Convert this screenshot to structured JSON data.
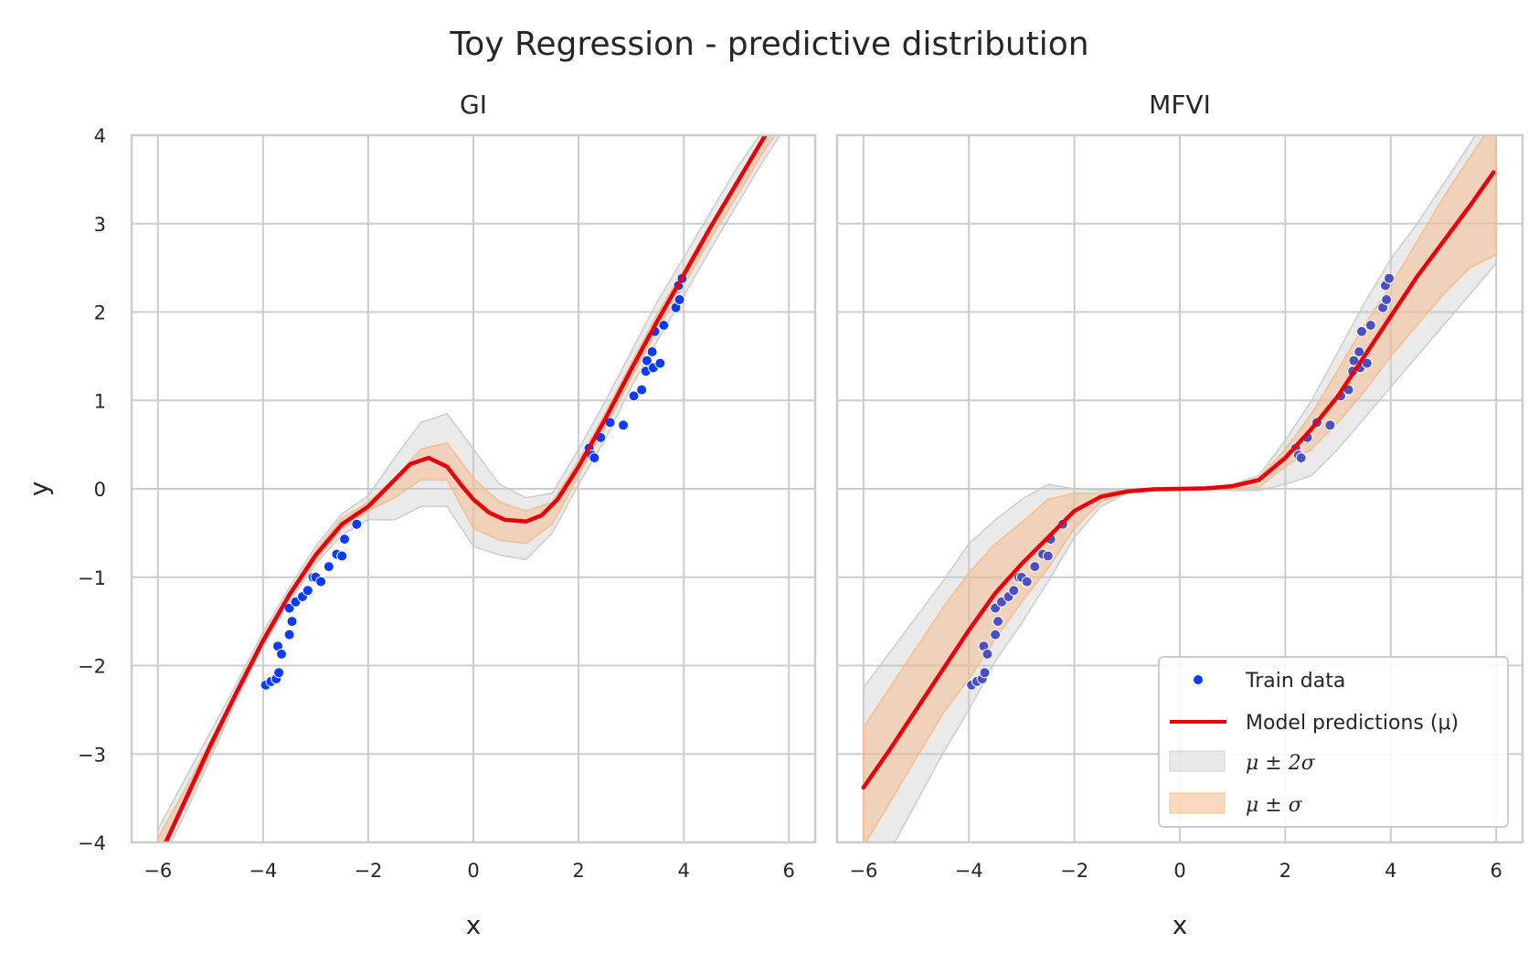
{
  "figure": {
    "title": "Toy Regression - predictive distribution"
  },
  "legend": {
    "train": "Train data",
    "model": "Model predictions (μ)",
    "two_sigma": "μ ± 2σ",
    "one_sigma": "μ ± σ",
    "placement": "lower-right of MFVI panel"
  },
  "colors": {
    "train_points": "#0a3cff",
    "train_points_mfvi": "#4a4fc4",
    "prediction_line": "#e8000b",
    "band_2sigma": "#c8c8c8",
    "band_1sigma": "#f5b98a",
    "grid": "#cccccc",
    "axes_edge": "#cccccc"
  },
  "chart_data": [
    {
      "type": "line",
      "title": "GI",
      "xlabel": "x",
      "ylabel": "y",
      "xlim": [
        -6.5,
        6.5
      ],
      "ylim": [
        -4,
        4
      ],
      "xticks": [
        "−6",
        "−4",
        "−2",
        "0",
        "2",
        "4",
        "6"
      ],
      "yticks": [
        "4",
        "3",
        "2",
        "1",
        "0",
        "−1",
        "−2",
        "−3",
        "−4"
      ],
      "grid": true,
      "series": [
        {
          "kind": "band_2sigma",
          "x": [
            -6,
            -5.5,
            -5,
            -4.5,
            -4,
            -3.5,
            -3,
            -2.5,
            -2,
            -1.5,
            -1,
            -0.5,
            0,
            0.5,
            1,
            1.5,
            2,
            2.5,
            3,
            3.5,
            4,
            4.5,
            5,
            5.5,
            6
          ],
          "upper": [
            -3.85,
            -3.3,
            -2.75,
            -2.2,
            -1.62,
            -1.12,
            -0.65,
            -0.28,
            -0.08,
            0.35,
            0.75,
            0.85,
            0.45,
            0.05,
            -0.1,
            -0.05,
            0.45,
            0.98,
            1.55,
            2.12,
            2.62,
            3.12,
            3.62,
            4.05,
            4.45
          ],
          "lower": [
            -4.3,
            -3.7,
            -3.05,
            -2.38,
            -1.78,
            -1.28,
            -0.85,
            -0.52,
            -0.35,
            -0.35,
            -0.2,
            -0.2,
            -0.65,
            -0.75,
            -0.8,
            -0.5,
            0.05,
            0.55,
            1.15,
            1.68,
            2.18,
            2.7,
            3.2,
            3.7,
            4.15
          ]
        },
        {
          "kind": "band_1sigma",
          "x": [
            -6,
            -5.5,
            -5,
            -4.5,
            -4,
            -3.5,
            -3,
            -2.5,
            -2,
            -1.5,
            -1,
            -0.5,
            0,
            0.5,
            1,
            1.5,
            2,
            2.5,
            3,
            3.5,
            4,
            4.5,
            5,
            5.5,
            6
          ],
          "upper": [
            -3.95,
            -3.42,
            -2.85,
            -2.25,
            -1.67,
            -1.17,
            -0.7,
            -0.33,
            -0.15,
            0.12,
            0.45,
            0.52,
            0.12,
            -0.15,
            -0.25,
            -0.15,
            0.32,
            0.85,
            1.42,
            1.98,
            2.48,
            2.98,
            3.48,
            3.92,
            4.35
          ],
          "lower": [
            -4.2,
            -3.6,
            -2.98,
            -2.32,
            -1.73,
            -1.23,
            -0.8,
            -0.45,
            -0.25,
            -0.1,
            0.1,
            0.1,
            -0.45,
            -0.58,
            -0.62,
            -0.4,
            0.15,
            0.68,
            1.25,
            1.8,
            2.3,
            2.82,
            3.3,
            3.8,
            4.22
          ]
        },
        {
          "kind": "prediction",
          "name": "Model predictions (μ)",
          "x": [
            -5.85,
            -5.5,
            -5,
            -4.5,
            -4,
            -3.5,
            -3,
            -2.5,
            -2,
            -1.5,
            -1.2,
            -0.85,
            -0.5,
            -0.2,
            0,
            0.3,
            0.6,
            1,
            1.3,
            1.6,
            2,
            2.5,
            3,
            3.5,
            4,
            4.5,
            5,
            5.5,
            5.65
          ],
          "y": [
            -4.0,
            -3.55,
            -2.9,
            -2.3,
            -1.72,
            -1.2,
            -0.75,
            -0.4,
            -0.2,
            0.1,
            0.28,
            0.35,
            0.25,
            0.02,
            -0.12,
            -0.27,
            -0.35,
            -0.37,
            -0.3,
            -0.12,
            0.25,
            0.78,
            1.35,
            1.9,
            2.42,
            2.95,
            3.45,
            3.95,
            4.1
          ]
        },
        {
          "kind": "train",
          "name": "Train data",
          "points": [
            [
              -3.95,
              -2.22
            ],
            [
              -3.85,
              -2.18
            ],
            [
              -3.75,
              -2.15
            ],
            [
              -3.7,
              -2.08
            ],
            [
              -3.72,
              -1.78
            ],
            [
              -3.65,
              -1.87
            ],
            [
              -3.5,
              -1.65
            ],
            [
              -3.45,
              -1.5
            ],
            [
              -3.5,
              -1.35
            ],
            [
              -3.38,
              -1.28
            ],
            [
              -3.25,
              -1.22
            ],
            [
              -3.15,
              -1.15
            ],
            [
              -3.05,
              -1.0
            ],
            [
              -3.0,
              -1.0
            ],
            [
              -2.9,
              -1.05
            ],
            [
              -2.75,
              -0.88
            ],
            [
              -2.6,
              -0.74
            ],
            [
              -2.5,
              -0.76
            ],
            [
              -2.45,
              -0.57
            ],
            [
              -2.22,
              -0.4
            ],
            [
              2.2,
              0.46
            ],
            [
              2.25,
              0.38
            ],
            [
              2.3,
              0.35
            ],
            [
              2.42,
              0.58
            ],
            [
              2.6,
              0.75
            ],
            [
              2.85,
              0.72
            ],
            [
              3.05,
              1.05
            ],
            [
              3.2,
              1.12
            ],
            [
              3.28,
              1.33
            ],
            [
              3.3,
              1.45
            ],
            [
              3.42,
              1.37
            ],
            [
              3.4,
              1.55
            ],
            [
              3.45,
              1.78
            ],
            [
              3.55,
              1.42
            ],
            [
              3.62,
              1.85
            ],
            [
              3.85,
              2.05
            ],
            [
              3.9,
              2.3
            ],
            [
              3.92,
              2.14
            ],
            [
              3.97,
              2.38
            ]
          ]
        }
      ]
    },
    {
      "type": "line",
      "title": "MFVI",
      "xlabel": "x",
      "ylabel": "",
      "xlim": [
        -6.5,
        6.5
      ],
      "ylim": [
        -4,
        4
      ],
      "xticks": [
        "−6",
        "−4",
        "−2",
        "0",
        "2",
        "4",
        "6"
      ],
      "yticks": [],
      "grid": true,
      "series": [
        {
          "kind": "band_2sigma",
          "x": [
            -6,
            -5.5,
            -5,
            -4.5,
            -4,
            -3.5,
            -3,
            -2.5,
            -2,
            -1.5,
            -1,
            -0.5,
            0,
            0.5,
            1,
            1.5,
            2,
            2.5,
            3,
            3.5,
            4,
            4.5,
            5,
            5.5,
            6
          ],
          "upper": [
            -2.25,
            -1.85,
            -1.45,
            -1.05,
            -0.62,
            -0.35,
            -0.12,
            0.05,
            0.0,
            -0.02,
            -0.02,
            0.0,
            0.0,
            0.02,
            0.05,
            0.15,
            0.55,
            1.0,
            1.55,
            2.1,
            2.6,
            3.0,
            3.45,
            3.9,
            4.4
          ],
          "lower": [
            -4.6,
            -4.1,
            -3.55,
            -3.0,
            -2.5,
            -1.95,
            -1.52,
            -1.05,
            -0.55,
            -0.2,
            -0.05,
            -0.02,
            -0.01,
            -0.01,
            -0.02,
            -0.02,
            0.05,
            0.15,
            0.45,
            0.8,
            1.15,
            1.5,
            1.85,
            2.2,
            2.55
          ]
        },
        {
          "kind": "band_1sigma",
          "x": [
            -6,
            -5.5,
            -5,
            -4.5,
            -4,
            -3.5,
            -3,
            -2.5,
            -2,
            -1.5,
            -1,
            -0.5,
            0,
            0.5,
            1,
            1.5,
            2,
            2.5,
            3,
            3.5,
            4,
            4.5,
            5,
            5.5,
            6
          ],
          "upper": [
            -2.7,
            -2.25,
            -1.8,
            -1.35,
            -0.95,
            -0.62,
            -0.38,
            -0.12,
            -0.05,
            -0.05,
            -0.02,
            -0.01,
            0.0,
            0.01,
            0.03,
            0.12,
            0.45,
            0.85,
            1.35,
            1.85,
            2.3,
            2.8,
            3.3,
            3.75,
            4.2
          ],
          "lower": [
            -4.05,
            -3.55,
            -3.05,
            -2.55,
            -2.15,
            -1.7,
            -1.28,
            -0.9,
            -0.45,
            -0.15,
            -0.04,
            -0.01,
            0.0,
            0.0,
            0.0,
            0.02,
            0.25,
            0.45,
            0.75,
            1.1,
            1.5,
            1.85,
            2.2,
            2.5,
            2.65
          ]
        },
        {
          "kind": "prediction",
          "name": "Model predictions (μ)",
          "x": [
            -6,
            -5.5,
            -5,
            -4.5,
            -4,
            -3.5,
            -3,
            -2.5,
            -2,
            -1.5,
            -1,
            -0.5,
            0,
            0.5,
            1,
            1.5,
            2,
            2.5,
            3,
            3.5,
            4,
            4.5,
            5,
            5.5,
            5.95
          ],
          "y": [
            -3.38,
            -2.95,
            -2.5,
            -2.05,
            -1.6,
            -1.18,
            -0.85,
            -0.55,
            -0.25,
            -0.09,
            -0.03,
            -0.005,
            0.0,
            0.005,
            0.03,
            0.1,
            0.35,
            0.68,
            1.05,
            1.5,
            1.95,
            2.4,
            2.8,
            3.2,
            3.58
          ]
        },
        {
          "kind": "train",
          "name": "Train data",
          "points": [
            [
              -3.95,
              -2.22
            ],
            [
              -3.85,
              -2.18
            ],
            [
              -3.75,
              -2.15
            ],
            [
              -3.7,
              -2.08
            ],
            [
              -3.72,
              -1.78
            ],
            [
              -3.65,
              -1.87
            ],
            [
              -3.5,
              -1.65
            ],
            [
              -3.45,
              -1.5
            ],
            [
              -3.5,
              -1.35
            ],
            [
              -3.38,
              -1.28
            ],
            [
              -3.25,
              -1.22
            ],
            [
              -3.15,
              -1.15
            ],
            [
              -3.05,
              -1.0
            ],
            [
              -3.0,
              -1.0
            ],
            [
              -2.9,
              -1.05
            ],
            [
              -2.75,
              -0.88
            ],
            [
              -2.6,
              -0.74
            ],
            [
              -2.5,
              -0.76
            ],
            [
              -2.45,
              -0.57
            ],
            [
              -2.22,
              -0.4
            ],
            [
              2.2,
              0.46
            ],
            [
              2.25,
              0.38
            ],
            [
              2.3,
              0.35
            ],
            [
              2.42,
              0.58
            ],
            [
              2.6,
              0.75
            ],
            [
              2.85,
              0.72
            ],
            [
              3.05,
              1.05
            ],
            [
              3.2,
              1.12
            ],
            [
              3.28,
              1.33
            ],
            [
              3.3,
              1.45
            ],
            [
              3.42,
              1.37
            ],
            [
              3.4,
              1.55
            ],
            [
              3.45,
              1.78
            ],
            [
              3.55,
              1.42
            ],
            [
              3.62,
              1.85
            ],
            [
              3.85,
              2.05
            ],
            [
              3.9,
              2.3
            ],
            [
              3.92,
              2.14
            ],
            [
              3.97,
              2.38
            ]
          ]
        }
      ]
    }
  ]
}
